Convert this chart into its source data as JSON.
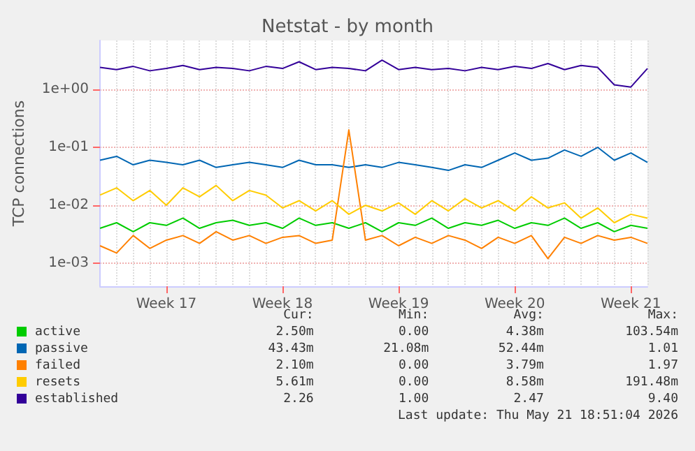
{
  "chart_data": {
    "type": "line",
    "title": "Netstat - by month",
    "ylabel": "TCP connections",
    "categories": [
      null,
      null,
      null,
      null,
      "Week 17",
      null,
      null,
      null,
      null,
      null,
      null,
      "Week 18",
      null,
      null,
      null,
      null,
      null,
      null,
      "Week 19",
      null,
      null,
      null,
      null,
      null,
      null,
      "Week 20",
      null,
      null,
      null,
      null,
      null,
      null,
      "Week 21",
      null
    ],
    "series": [
      {
        "name": "active",
        "color": "#00cc00",
        "values": [
          0.004,
          0.005,
          0.0035,
          0.005,
          0.0045,
          0.006,
          0.004,
          0.005,
          0.0055,
          0.0045,
          0.005,
          0.004,
          0.006,
          0.0045,
          0.005,
          0.004,
          0.005,
          0.0035,
          0.005,
          0.0045,
          0.006,
          0.004,
          0.005,
          0.0045,
          0.0055,
          0.004,
          0.005,
          0.0045,
          0.006,
          0.004,
          0.005,
          0.0035,
          0.0045,
          0.004
        ]
      },
      {
        "name": "passive",
        "color": "#0066b3",
        "values": [
          0.06,
          0.07,
          0.05,
          0.06,
          0.055,
          0.05,
          0.06,
          0.045,
          0.05,
          0.055,
          0.05,
          0.045,
          0.06,
          0.05,
          0.05,
          0.045,
          0.05,
          0.045,
          0.055,
          0.05,
          0.045,
          0.04,
          0.05,
          0.045,
          0.06,
          0.08,
          0.06,
          0.065,
          0.09,
          0.07,
          0.1,
          0.06,
          0.08,
          0.055
        ]
      },
      {
        "name": "failed",
        "color": "#ff8000",
        "values": [
          0.002,
          0.0015,
          0.003,
          0.0018,
          0.0025,
          0.003,
          0.0022,
          0.0035,
          0.0025,
          0.003,
          0.0022,
          0.0028,
          0.003,
          0.0022,
          0.0025,
          0.2,
          0.0025,
          0.003,
          0.002,
          0.0028,
          0.0022,
          0.003,
          0.0025,
          0.0018,
          0.0028,
          0.0022,
          0.003,
          0.0012,
          0.0028,
          0.0022,
          0.003,
          0.0025,
          0.0028,
          0.0022
        ]
      },
      {
        "name": "resets",
        "color": "#ffcc00",
        "values": [
          0.015,
          0.02,
          0.012,
          0.018,
          0.01,
          0.02,
          0.014,
          0.022,
          0.012,
          0.018,
          0.015,
          0.009,
          0.012,
          0.008,
          0.012,
          0.007,
          0.01,
          0.008,
          0.011,
          0.007,
          0.012,
          0.008,
          0.013,
          0.009,
          0.012,
          0.008,
          0.014,
          0.009,
          0.011,
          0.006,
          0.009,
          0.005,
          0.007,
          0.006
        ]
      },
      {
        "name": "established",
        "color": "#330099",
        "values": [
          2.4,
          2.2,
          2.5,
          2.1,
          2.3,
          2.6,
          2.2,
          2.4,
          2.3,
          2.1,
          2.5,
          2.3,
          3.0,
          2.2,
          2.4,
          2.3,
          2.1,
          3.2,
          2.2,
          2.4,
          2.2,
          2.3,
          2.1,
          2.4,
          2.2,
          2.5,
          2.3,
          2.8,
          2.2,
          2.6,
          2.4,
          1.2,
          1.1,
          2.3
        ]
      }
    ],
    "log": "y",
    "ylim": [
      0.0004,
      7
    ],
    "yticks": [
      {
        "value": 0.001,
        "label": "1e-03"
      },
      {
        "value": 0.01,
        "label": "1e-02"
      },
      {
        "value": 0.1,
        "label": "1e-01"
      },
      {
        "value": 1,
        "label": "1e+00"
      }
    ],
    "grid": true,
    "legend": "bottom",
    "marker": "none",
    "line_style": "solid",
    "annotations": [
      "Cur:",
      "Min:",
      "Avg:",
      "Max:",
      "2.50m",
      "0.00",
      "4.38m",
      "103.54m",
      "43.43m",
      "21.08m",
      "52.44m",
      "1.01",
      "2.10m",
      "0.00",
      "3.79m",
      "1.97",
      "5.61m",
      "0.00",
      "8.58m",
      "191.48m",
      "2.26",
      "1.00",
      "2.47",
      "9.40",
      "Last update: Thu May 21 18:51:04 2026"
    ]
  }
}
